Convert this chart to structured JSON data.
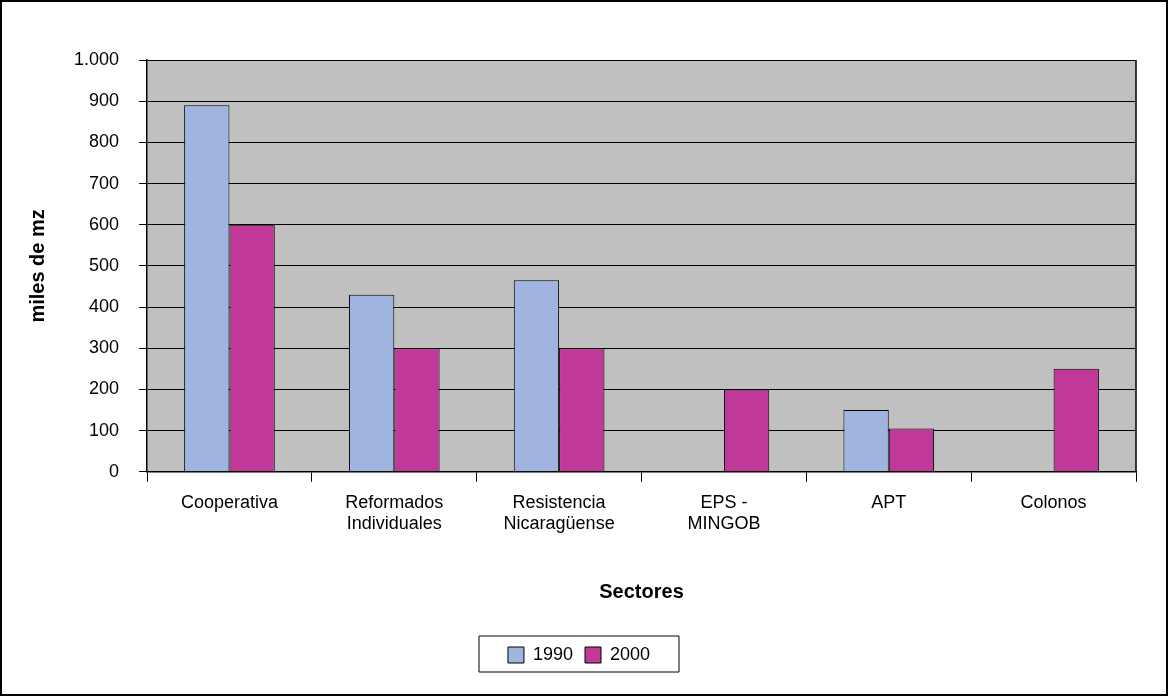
{
  "chart_data": {
    "type": "bar",
    "xlabel": "Sectores",
    "ylabel": "miles de mz",
    "categories": [
      "Cooperativa",
      "Reformados Individuales",
      "Resistencia Nicaragüense",
      "EPS - MINGOB",
      "APT",
      "Colonos"
    ],
    "series": [
      {
        "name": "1990",
        "color": "#a0b4e0",
        "values": [
          890,
          430,
          465,
          null,
          150,
          null
        ]
      },
      {
        "name": "2000",
        "color": "#c03898",
        "values": [
          600,
          300,
          300,
          200,
          105,
          250
        ]
      }
    ],
    "ylim": [
      0,
      1000
    ],
    "yticks": [
      0,
      100,
      200,
      300,
      400,
      500,
      600,
      700,
      800,
      900,
      {
        "value": 1000,
        "label": "1.000"
      }
    ],
    "grid": "y",
    "legend": "bottom"
  }
}
